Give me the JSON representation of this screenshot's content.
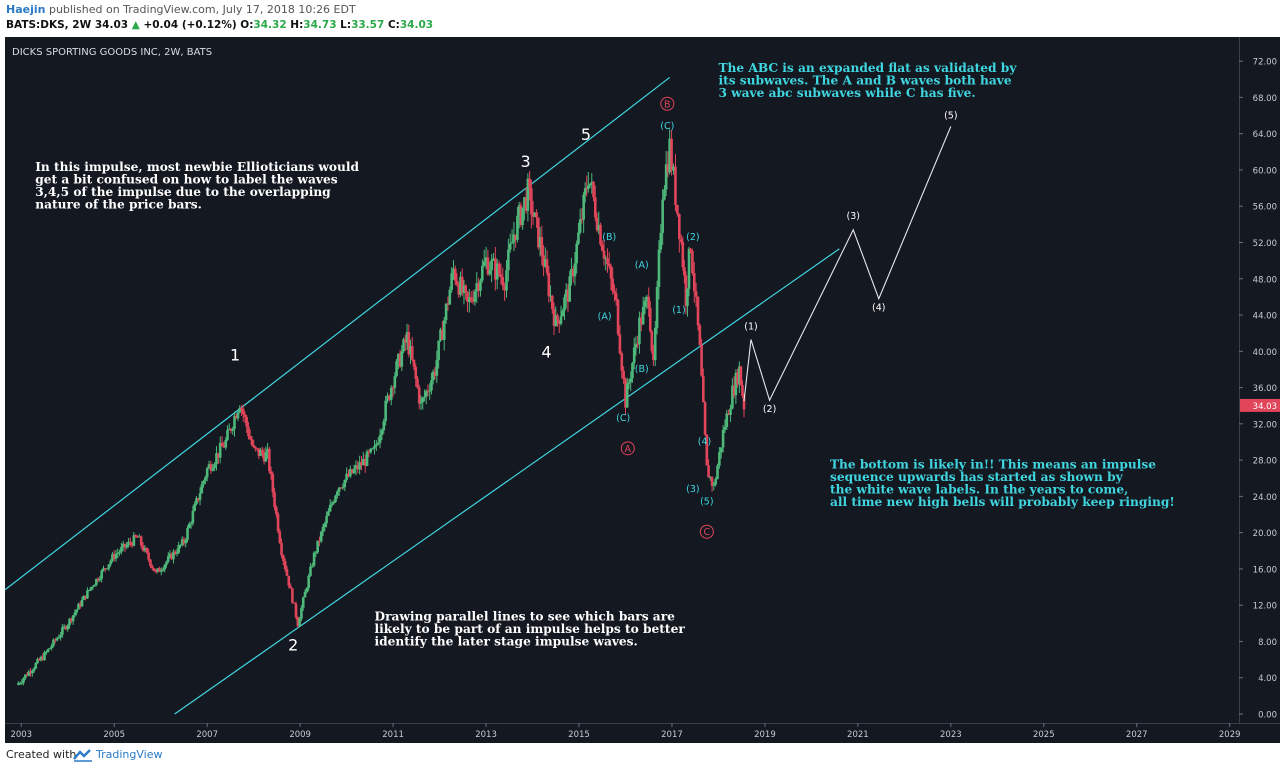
{
  "header": {
    "author": "Haejin",
    "published": "published on TradingView.com, July 17, 2018 10:26 EDT",
    "symbol": "BATS:DKS, 2W",
    "last": "34.03",
    "change": "+0.04 (+0.12%)",
    "o_label": "O:",
    "o": "34.32",
    "h_label": "H:",
    "h": "34.73",
    "l_label": "L:",
    "l": "33.57",
    "c_label": "C:",
    "c": "34.03"
  },
  "footer": {
    "created": "Created with",
    "brand": "TradingView"
  },
  "colors": {
    "background": "#141821",
    "up": "#4db87a",
    "down": "#e0455a",
    "channel": "#3fd6e0",
    "annotation": "#3fd6e0",
    "projection": "#e8e8e8",
    "circle_label": "#e0455a"
  },
  "chart_data": {
    "type": "candlestick",
    "title": "DICKS SPORTING GOODS INC, 2W, BATS",
    "x_range": [
      2002.65,
      2029.2
    ],
    "ylim": [
      0,
      74
    ],
    "y_ticks": [
      0,
      4,
      8,
      12,
      16,
      20,
      24,
      28,
      32,
      36,
      40,
      44,
      48,
      52,
      56,
      60,
      64,
      68,
      72
    ],
    "x_ticks": [
      2003,
      2005,
      2007,
      2009,
      2011,
      2013,
      2015,
      2017,
      2019,
      2021,
      2023,
      2025,
      2027,
      2029
    ],
    "x_tick_labels": [
      "2003",
      "2005",
      "2007",
      "2009",
      "2011",
      "2013",
      "2015",
      "2017",
      "2019",
      "2021",
      "2023",
      "2025",
      "2027",
      "2029"
    ],
    "last_price": 34.03,
    "last_price_label": "34.03",
    "price_path": [
      [
        2002.9,
        3.2
      ],
      [
        2003.5,
        6.5
      ],
      [
        2004.0,
        10.0
      ],
      [
        2004.5,
        14.0
      ],
      [
        2005.0,
        17.5
      ],
      [
        2005.5,
        19.5
      ],
      [
        2005.9,
        15.5
      ],
      [
        2006.5,
        19.0
      ],
      [
        2007.0,
        27.0
      ],
      [
        2007.4,
        30.0
      ],
      [
        2007.7,
        34.5
      ],
      [
        2008.0,
        29.0
      ],
      [
        2008.3,
        28.5
      ],
      [
        2008.6,
        18.0
      ],
      [
        2008.95,
        10.0
      ],
      [
        2009.3,
        17.5
      ],
      [
        2009.8,
        25.0
      ],
      [
        2010.2,
        27.0
      ],
      [
        2010.6,
        29.0
      ],
      [
        2011.0,
        37.0
      ],
      [
        2011.3,
        41.5
      ],
      [
        2011.6,
        34.0
      ],
      [
        2011.9,
        38.0
      ],
      [
        2012.3,
        49.0
      ],
      [
        2012.6,
        45.0
      ],
      [
        2013.0,
        50.0
      ],
      [
        2013.4,
        48.0
      ],
      [
        2013.6,
        53.0
      ],
      [
        2013.9,
        57.5
      ],
      [
        2014.2,
        51.0
      ],
      [
        2014.5,
        43.0
      ],
      [
        2014.8,
        47.0
      ],
      [
        2015.1,
        56.0
      ],
      [
        2015.2,
        59.5
      ],
      [
        2015.5,
        52.0
      ],
      [
        2015.8,
        45.0
      ],
      [
        2016.0,
        34.5
      ],
      [
        2016.3,
        43.0
      ],
      [
        2016.5,
        46.0
      ],
      [
        2016.6,
        38.0
      ],
      [
        2016.8,
        58.0
      ],
      [
        2016.95,
        62.5
      ],
      [
        2017.2,
        52.0
      ],
      [
        2017.3,
        46.0
      ],
      [
        2017.4,
        52.0
      ],
      [
        2017.6,
        40.0
      ],
      [
        2017.75,
        27.0
      ],
      [
        2017.9,
        25.0
      ],
      [
        2018.1,
        31.0
      ],
      [
        2018.3,
        35.5
      ],
      [
        2018.45,
        38.0
      ],
      [
        2018.55,
        34.03
      ]
    ],
    "channel": {
      "upper": [
        [
          2002.65,
          13.7
        ],
        [
          2016.95,
          70.2
        ]
      ],
      "lower": [
        [
          2006.3,
          0
        ],
        [
          2020.6,
          51.3
        ]
      ],
      "color": "#3fd6e0"
    },
    "projection": [
      [
        2018.55,
        34.5
      ],
      [
        2018.7,
        41.3
      ],
      [
        2019.1,
        34.6
      ],
      [
        2020.9,
        53.4
      ],
      [
        2021.45,
        45.8
      ],
      [
        2023.0,
        64.8
      ]
    ],
    "labels": [
      {
        "text": "1",
        "x": 2007.6,
        "y": 39.0,
        "style": "primary"
      },
      {
        "text": "2",
        "x": 2008.85,
        "y": 7.0,
        "style": "primary"
      },
      {
        "text": "3",
        "x": 2013.85,
        "y": 60.3,
        "style": "primary"
      },
      {
        "text": "4",
        "x": 2014.3,
        "y": 39.3,
        "style": "primary"
      },
      {
        "text": "5",
        "x": 2015.15,
        "y": 63.3,
        "style": "primary"
      },
      {
        "text": "(A)",
        "x": 2015.55,
        "y": 43.5,
        "style": "minor"
      },
      {
        "text": "(B)",
        "x": 2015.65,
        "y": 52.3,
        "style": "minor"
      },
      {
        "text": "(C)",
        "x": 2015.95,
        "y": 32.3,
        "style": "minor"
      },
      {
        "text": "(A)",
        "x": 2016.35,
        "y": 49.2,
        "style": "minor"
      },
      {
        "text": "(B)",
        "x": 2016.35,
        "y": 37.7,
        "style": "minor"
      },
      {
        "text": "(C)",
        "x": 2016.9,
        "y": 64.5,
        "style": "minor"
      },
      {
        "text": "(2)",
        "x": 2017.45,
        "y": 52.3,
        "style": "minor"
      },
      {
        "text": "(1)",
        "x": 2017.15,
        "y": 44.2,
        "style": "minor"
      },
      {
        "text": "(3)",
        "x": 2017.45,
        "y": 24.5,
        "style": "minor"
      },
      {
        "text": "(4)",
        "x": 2017.7,
        "y": 29.7,
        "style": "minor"
      },
      {
        "text": "(5)",
        "x": 2017.75,
        "y": 23.1,
        "style": "minor"
      },
      {
        "text": "B",
        "x": 2016.9,
        "y": 67.3,
        "style": "circle"
      },
      {
        "text": "A",
        "x": 2016.05,
        "y": 29.3,
        "style": "circle"
      },
      {
        "text": "C",
        "x": 2017.75,
        "y": 20.1,
        "style": "circle"
      },
      {
        "text": "(1)",
        "x": 2018.7,
        "y": 42.4,
        "style": "projection"
      },
      {
        "text": "(2)",
        "x": 2019.1,
        "y": 33.3,
        "style": "projection"
      },
      {
        "text": "(3)",
        "x": 2020.9,
        "y": 54.6,
        "style": "projection"
      },
      {
        "text": "(4)",
        "x": 2021.45,
        "y": 44.5,
        "style": "projection"
      },
      {
        "text": "(5)",
        "x": 2023.0,
        "y": 65.7,
        "style": "projection"
      }
    ],
    "annotations": [
      {
        "lines": [
          "In this impulse, most newbie Ellioticians would",
          "get a bit confused on how to label the waves",
          "3,4,5 of the impulse due to the overlapping",
          "nature of the price bars."
        ],
        "x": 2003.3,
        "y": 59.9,
        "color": "#ffffff"
      },
      {
        "lines": [
          "The ABC is an expanded flat as validated by",
          "its subwaves. The A and B waves both have",
          "3 wave abc subwaves while C has five."
        ],
        "x": 2018.0,
        "y": 70.8,
        "color": "#3fd6e0"
      },
      {
        "lines": [
          "The bottom is likely in!! This means an impulse",
          "sequence upwards has started as shown by",
          "the white wave labels. In the years to come,",
          "all time new high bells will probably keep ringing!"
        ],
        "x": 2020.4,
        "y": 27.1,
        "color": "#3fd6e0"
      },
      {
        "lines": [
          "Drawing parallel lines to see which bars are",
          "likely to be part of an impulse helps to better",
          "identify the later stage impulse waves."
        ],
        "x": 2010.6,
        "y": 10.3,
        "color": "#ffffff"
      }
    ]
  }
}
